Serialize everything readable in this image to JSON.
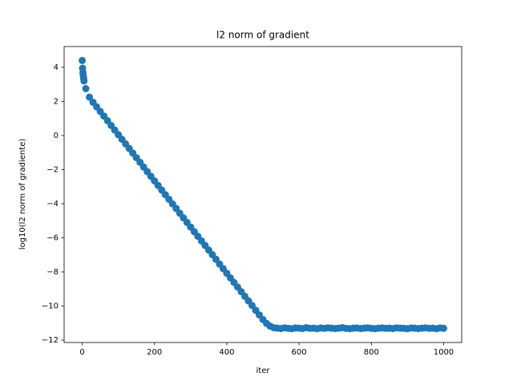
{
  "chart_data": {
    "type": "scatter",
    "title": "l2 norm of gradient",
    "xlabel": "iter",
    "ylabel": "log10(l2 norm of gradiente)",
    "color": "#1f77b4",
    "x": [
      0,
      1,
      2,
      3,
      4,
      5,
      10,
      20,
      30,
      40,
      50,
      60,
      70,
      80,
      90,
      100,
      110,
      120,
      130,
      140,
      150,
      160,
      170,
      180,
      190,
      200,
      210,
      220,
      230,
      240,
      250,
      260,
      270,
      280,
      290,
      300,
      310,
      320,
      330,
      340,
      350,
      360,
      370,
      380,
      390,
      400,
      410,
      420,
      430,
      440,
      450,
      460,
      470,
      480,
      490,
      500,
      510,
      520,
      530,
      540,
      550,
      560,
      570,
      580,
      590,
      600,
      610,
      620,
      630,
      640,
      650,
      660,
      670,
      680,
      690,
      700,
      710,
      720,
      730,
      740,
      750,
      760,
      770,
      780,
      790,
      800,
      810,
      820,
      830,
      840,
      850,
      860,
      870,
      880,
      890,
      900,
      910,
      920,
      930,
      940,
      950,
      960,
      970,
      980,
      990,
      1000
    ],
    "values": [
      4.4,
      3.95,
      3.7,
      3.5,
      3.35,
      3.2,
      2.75,
      2.25,
      1.95,
      1.68,
      1.41,
      1.14,
      0.87,
      0.59,
      0.32,
      0.05,
      -0.22,
      -0.49,
      -0.76,
      -1.03,
      -1.3,
      -1.57,
      -1.85,
      -2.12,
      -2.39,
      -2.66,
      -2.93,
      -3.2,
      -3.47,
      -3.74,
      -4.01,
      -4.28,
      -4.56,
      -4.83,
      -5.1,
      -5.37,
      -5.64,
      -5.91,
      -6.18,
      -6.45,
      -6.72,
      -6.99,
      -7.26,
      -7.54,
      -7.81,
      -8.08,
      -8.35,
      -8.62,
      -8.89,
      -9.16,
      -9.43,
      -9.7,
      -9.97,
      -10.25,
      -10.52,
      -10.79,
      -11.02,
      -11.18,
      -11.27,
      -11.3,
      -11.32,
      -11.28,
      -11.31,
      -11.33,
      -11.29,
      -11.3,
      -11.32,
      -11.27,
      -11.31,
      -11.3,
      -11.33,
      -11.29,
      -11.31,
      -11.28,
      -11.3,
      -11.32,
      -11.3,
      -11.27,
      -11.31,
      -11.33,
      -11.3,
      -11.29,
      -11.32,
      -11.3,
      -11.28,
      -11.31,
      -11.33,
      -11.3,
      -11.29,
      -11.31,
      -11.3,
      -11.32,
      -11.28,
      -11.3,
      -11.31,
      -11.33,
      -11.29,
      -11.3,
      -11.32,
      -11.3,
      -11.28,
      -11.31,
      -11.3,
      -11.33,
      -11.29,
      -11.31
    ],
    "xlim": [
      -50,
      1050
    ],
    "ylim": [
      -12.14,
      5.22
    ],
    "xticks": [
      0,
      200,
      400,
      600,
      800,
      1000
    ],
    "yticks": [
      {
        "value": -12,
        "label": "−12"
      },
      {
        "value": -10,
        "label": "−10"
      },
      {
        "value": -8,
        "label": "−8"
      },
      {
        "value": -6,
        "label": "−6"
      },
      {
        "value": -4,
        "label": "−4"
      },
      {
        "value": -2,
        "label": "−2"
      },
      0,
      2,
      4
    ]
  }
}
